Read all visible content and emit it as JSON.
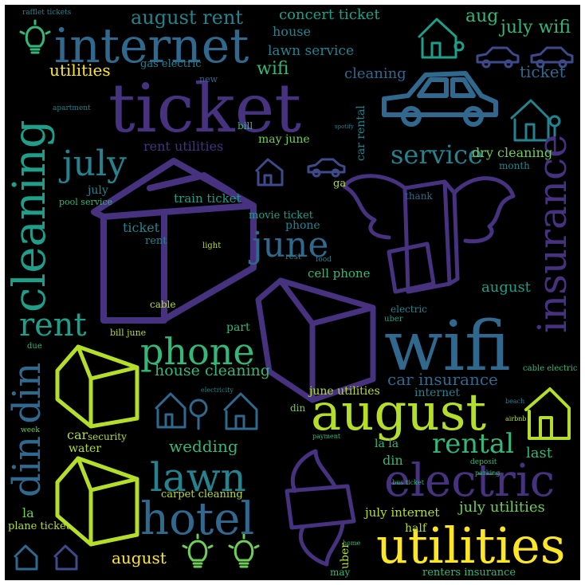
{
  "wordcloud": {
    "words": {
      "ticket": "ticket",
      "internet": "internet",
      "wifi": "wifi",
      "august": "august",
      "utilities": "utilities",
      "electric": "electric",
      "cleaning": "cleaning",
      "insurance": "insurance",
      "hotel": "hotel",
      "phone": "phone",
      "lawn": "lawn",
      "din_din": "din din",
      "july": "july",
      "june": "june",
      "rent": "rent",
      "service": "service",
      "rental": "rental",
      "august_rent": "august rent",
      "concert_ticket": "concert ticket",
      "house": "house",
      "lawn_service": "lawn service",
      "aug": "aug",
      "july_wifi": "july wifi",
      "wifi_small": "wifi",
      "utilities_small": "utilities",
      "cleaning_small": "cleaning",
      "ticket_small": "ticket",
      "gas_electric": "gas electric",
      "rent_utilities": "rent utilities",
      "may_june": "may june",
      "dry_cleaning": "dry cleaning",
      "month": "month",
      "car_rental": "car rental",
      "train_ticket": "train ticket",
      "july_small": "july",
      "pool_service": "pool service",
      "ticket_tiny": "ticket",
      "rent_tiny": "rent",
      "light": "light",
      "movie_ticket": "movie ticket",
      "phone_small": "phone",
      "cell_phone": "cell phone",
      "rest": "rest",
      "food": "food",
      "thank": "thank",
      "august_small": "august",
      "electric_small": "electric",
      "uber": "uber",
      "cable": "cable",
      "part": "part",
      "bill_june": "bill june",
      "house_cleaning": "house cleaning",
      "car_insurance": "car insurance",
      "june_utilities": "june utilities",
      "internet_small": "internet",
      "cable_electric": "cable electric",
      "din_tiny": "din",
      "car": "car",
      "security": "security",
      "water": "water",
      "wedding": "wedding",
      "carpet_cleaning": "carpet cleaning",
      "la_la": "la la",
      "din_small": "din",
      "last": "last",
      "deposit": "deposit",
      "july_internet": "july internet",
      "july_utilities": "july utilities",
      "la": "la",
      "plane_ticket": "plane ticket",
      "august_bottom": "august",
      "renters_insurance": "renters insurance",
      "half": "half",
      "uber_small": "uber",
      "due": "due",
      "week": "week",
      "apartment": "apartment",
      "new": "new",
      "bill": "bill",
      "ga": "ga",
      "may": "may",
      "home": "home",
      "electricity": "electricity",
      "payment": "payment",
      "bus_ticket": "bus ticket",
      "parking": "parking",
      "beach": "beach",
      "airbnb": "airbnb",
      "spotify": "spotify",
      "rafflet_tickets": "rafflet tickets"
    },
    "palette": {
      "background": "#000000",
      "deep_purple": "#46327e",
      "indigo": "#3e4a89",
      "blue": "#31688e",
      "teal": "#26828e",
      "sea_green": "#1f9e89",
      "green": "#35b779",
      "lime": "#6ece58",
      "yellow_green": "#b5de2b",
      "yellow": "#fde725"
    },
    "icons": [
      "house-icon",
      "car-icon",
      "lightbulb-icon",
      "box-with-wings-icon",
      "tree-icon"
    ]
  }
}
